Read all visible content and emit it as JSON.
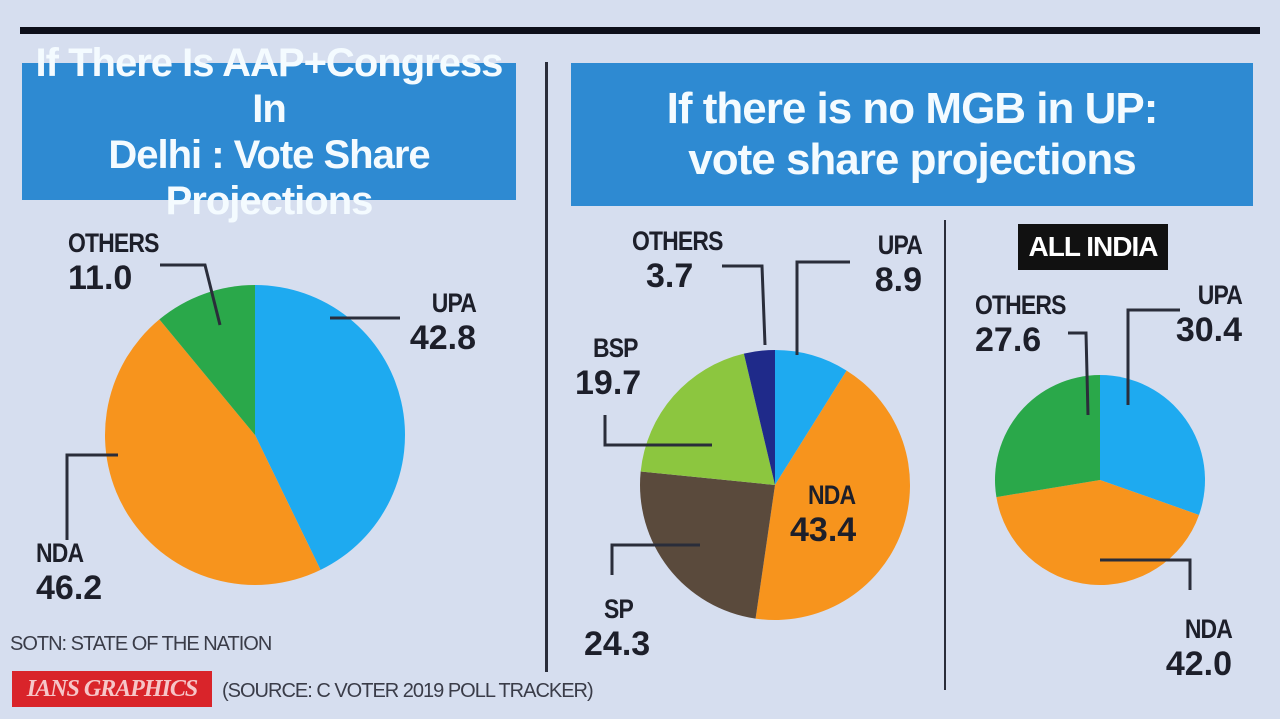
{
  "titles": {
    "left_line1": "If There Is AAP+Congress In",
    "left_line2": "Delhi : Vote Share Projections",
    "right_line1": "If there is no MGB in UP:",
    "right_line2": "vote share projections",
    "all_india_badge": "ALL INDIA"
  },
  "footer": {
    "abbreviation_note": "SOTN: STATE OF THE NATION",
    "credit": "IANS GRAPHICS",
    "source": "(SOURCE: C VOTER 2019 POLL TRACKER)"
  },
  "colors": {
    "background": "#d6deef",
    "title_box": "#2e8ad2",
    "upa": "#1eaaf0",
    "nda": "#f7941d",
    "others_green": "#2aa84a",
    "bsp": "#8cc63f",
    "sp": "#5a4a3c",
    "others_navy": "#1f2a8a"
  },
  "chart_data": [
    {
      "type": "pie",
      "title": "If There Is AAP+Congress In Delhi : Vote Share Projections",
      "categories": [
        "UPA",
        "NDA",
        "OTHERS"
      ],
      "values": [
        42.8,
        46.2,
        11.0
      ],
      "labels": {
        "UPA": "42.8",
        "NDA": "46.2",
        "OTHERS": "11.0"
      }
    },
    {
      "type": "pie",
      "title": "If there is no MGB in UP: vote share projections",
      "categories": [
        "UPA",
        "NDA",
        "SP",
        "BSP",
        "OTHERS"
      ],
      "values": [
        8.9,
        43.4,
        24.3,
        19.7,
        3.7
      ],
      "labels": {
        "UPA": "8.9",
        "NDA": "43.4",
        "SP": "24.3",
        "BSP": "19.7",
        "OTHERS": "3.7"
      }
    },
    {
      "type": "pie",
      "title": "ALL INDIA",
      "categories": [
        "UPA",
        "NDA",
        "OTHERS"
      ],
      "values": [
        30.4,
        42.0,
        27.6
      ],
      "labels": {
        "UPA": "30.4",
        "NDA": "42.0",
        "OTHERS": "27.6"
      }
    }
  ]
}
